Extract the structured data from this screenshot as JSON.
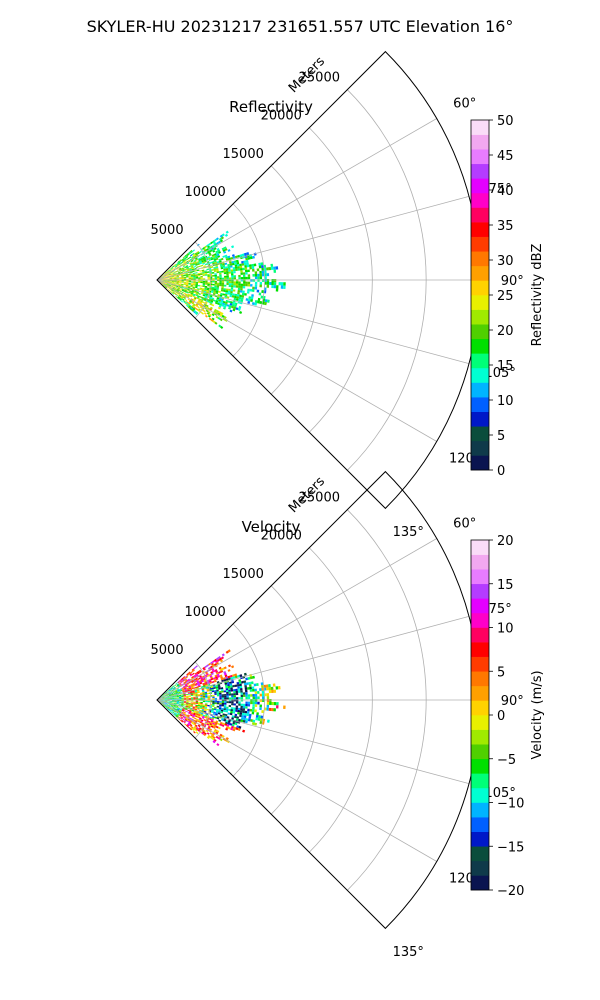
{
  "suptitle": "SKYLER-HU  20231217  231651.557 UTC Elevation 16°",
  "chart_data": [
    {
      "type": "heatmap",
      "projection": "polar-sector",
      "title": "Reflectivity",
      "range_label": "Meters",
      "azimuth_limits_deg": [
        45,
        135
      ],
      "range_limits_m": [
        0,
        30000
      ],
      "range_ticks": [
        "5000",
        "10000",
        "15000",
        "20000",
        "25000"
      ],
      "range_tick_values": [
        5000,
        10000,
        15000,
        20000,
        25000
      ],
      "azimuth_tick_values": [
        60,
        75,
        90,
        105,
        120,
        135
      ],
      "azimuth_ticks": [
        "60°",
        "75°",
        "90°",
        "105°",
        "120°",
        "135°"
      ],
      "grid": true,
      "colorbar": {
        "label": "Reflectivity dBZ",
        "min": 0,
        "max": 50,
        "tick_values": [
          0,
          5,
          10,
          15,
          20,
          25,
          30,
          35,
          40,
          45,
          50
        ],
        "tick_labels": [
          "0",
          "5",
          "10",
          "15",
          "20",
          "25",
          "30",
          "35",
          "40",
          "45",
          "50"
        ],
        "colors": [
          "#0a1450",
          "#0f3a4a",
          "#0a4d3c",
          "#0018c8",
          "#0060ff",
          "#00b4ff",
          "#00ffd2",
          "#00ff78",
          "#00e000",
          "#50d000",
          "#a0ea00",
          "#e8f000",
          "#ffd200",
          "#ffa000",
          "#ff7800",
          "#ff3c00",
          "#ff0000",
          "#ff0060",
          "#ff00c8",
          "#e400ff",
          "#b43cff",
          "#e87cff",
          "#f2a8f0",
          "#fadcf8"
        ]
      },
      "echo_summary": {
        "azimuth_span_deg": [
          50,
          130
        ],
        "range_span_m": [
          0,
          11500
        ],
        "value_range": [
          10,
          38
        ]
      }
    },
    {
      "type": "heatmap",
      "projection": "polar-sector",
      "title": "Velocity",
      "range_label": "Meters",
      "azimuth_limits_deg": [
        45,
        135
      ],
      "range_limits_m": [
        0,
        30000
      ],
      "range_ticks": [
        "5000",
        "10000",
        "15000",
        "20000",
        "25000"
      ],
      "range_tick_values": [
        5000,
        10000,
        15000,
        20000,
        25000
      ],
      "azimuth_tick_values": [
        60,
        75,
        90,
        105,
        120,
        135
      ],
      "azimuth_ticks": [
        "60°",
        "75°",
        "90°",
        "105°",
        "120°",
        "135°"
      ],
      "grid": true,
      "colorbar": {
        "label": "Velocity (m/s)",
        "min": -20,
        "max": 20,
        "tick_values": [
          -20,
          -15,
          -10,
          -5,
          0,
          5,
          10,
          15,
          20
        ],
        "tick_labels": [
          "−20",
          "−15",
          "−10",
          "−5",
          "0",
          "5",
          "10",
          "15",
          "20"
        ],
        "colors": [
          "#0a1450",
          "#0f3a4a",
          "#0a4d3c",
          "#0018c8",
          "#0060ff",
          "#00b4ff",
          "#00ffd2",
          "#00ff78",
          "#00e000",
          "#50d000",
          "#a0ea00",
          "#e8f000",
          "#ffd200",
          "#ffa000",
          "#ff7800",
          "#ff3c00",
          "#ff0000",
          "#ff0060",
          "#ff00c8",
          "#e400ff",
          "#b43cff",
          "#e87cff",
          "#f2a8f0",
          "#fadcf8"
        ]
      },
      "echo_summary": {
        "azimuth_span_deg": [
          50,
          130
        ],
        "range_span_m": [
          0,
          11500
        ],
        "value_range": [
          -15,
          16
        ]
      }
    }
  ]
}
